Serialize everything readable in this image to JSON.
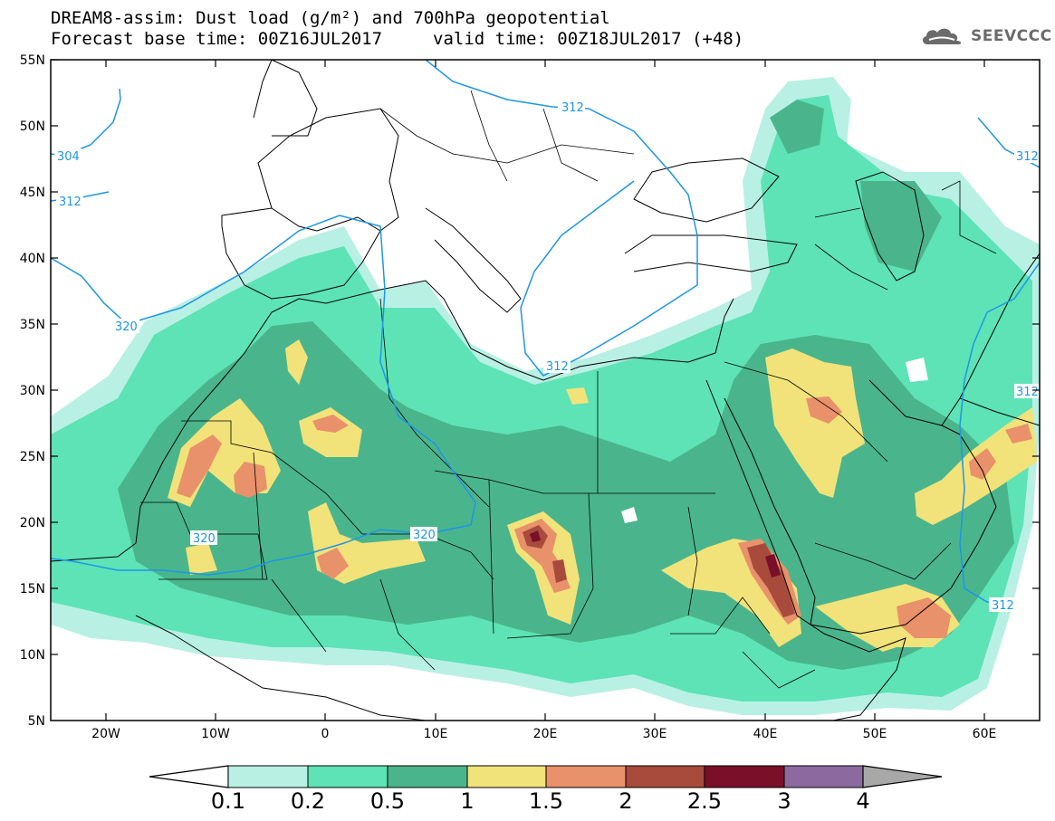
{
  "header": {
    "title_line1": "DREAM8-assim: Dust load (g/m²) and 700hPa geopotential",
    "base_time": "Forecast base time: 00Z16JUL2017",
    "valid_time": "valid time: 00Z18JUL2017 (+48)"
  },
  "logo": {
    "text": "SEEVCCC",
    "icon": "cloud-icon"
  },
  "axes": {
    "lat_labels": [
      "55N",
      "50N",
      "45N",
      "40N",
      "35N",
      "30N",
      "25N",
      "20N",
      "15N",
      "10N",
      "5N"
    ],
    "lon_labels": [
      "20W",
      "10W",
      "0",
      "10E",
      "20E",
      "30E",
      "40E",
      "50E",
      "60E"
    ]
  },
  "contour_labels": [
    "304",
    "312",
    "312",
    "312",
    "320",
    "320",
    "320",
    "312",
    "312",
    "312"
  ],
  "colorbar": {
    "labels": [
      "0.1",
      "0.2",
      "0.5",
      "1",
      "1.5",
      "2",
      "2.5",
      "3",
      "4"
    ],
    "colors": [
      "#ffffff",
      "#b9f0e4",
      "#5de3b6",
      "#4ab58c",
      "#f2e27a",
      "#e8916a",
      "#a84a3c",
      "#7a0f2a",
      "#8c6aa0",
      "#a8a8a8"
    ]
  },
  "colors": {
    "contour": "#1e96e6",
    "border": "#000000"
  }
}
